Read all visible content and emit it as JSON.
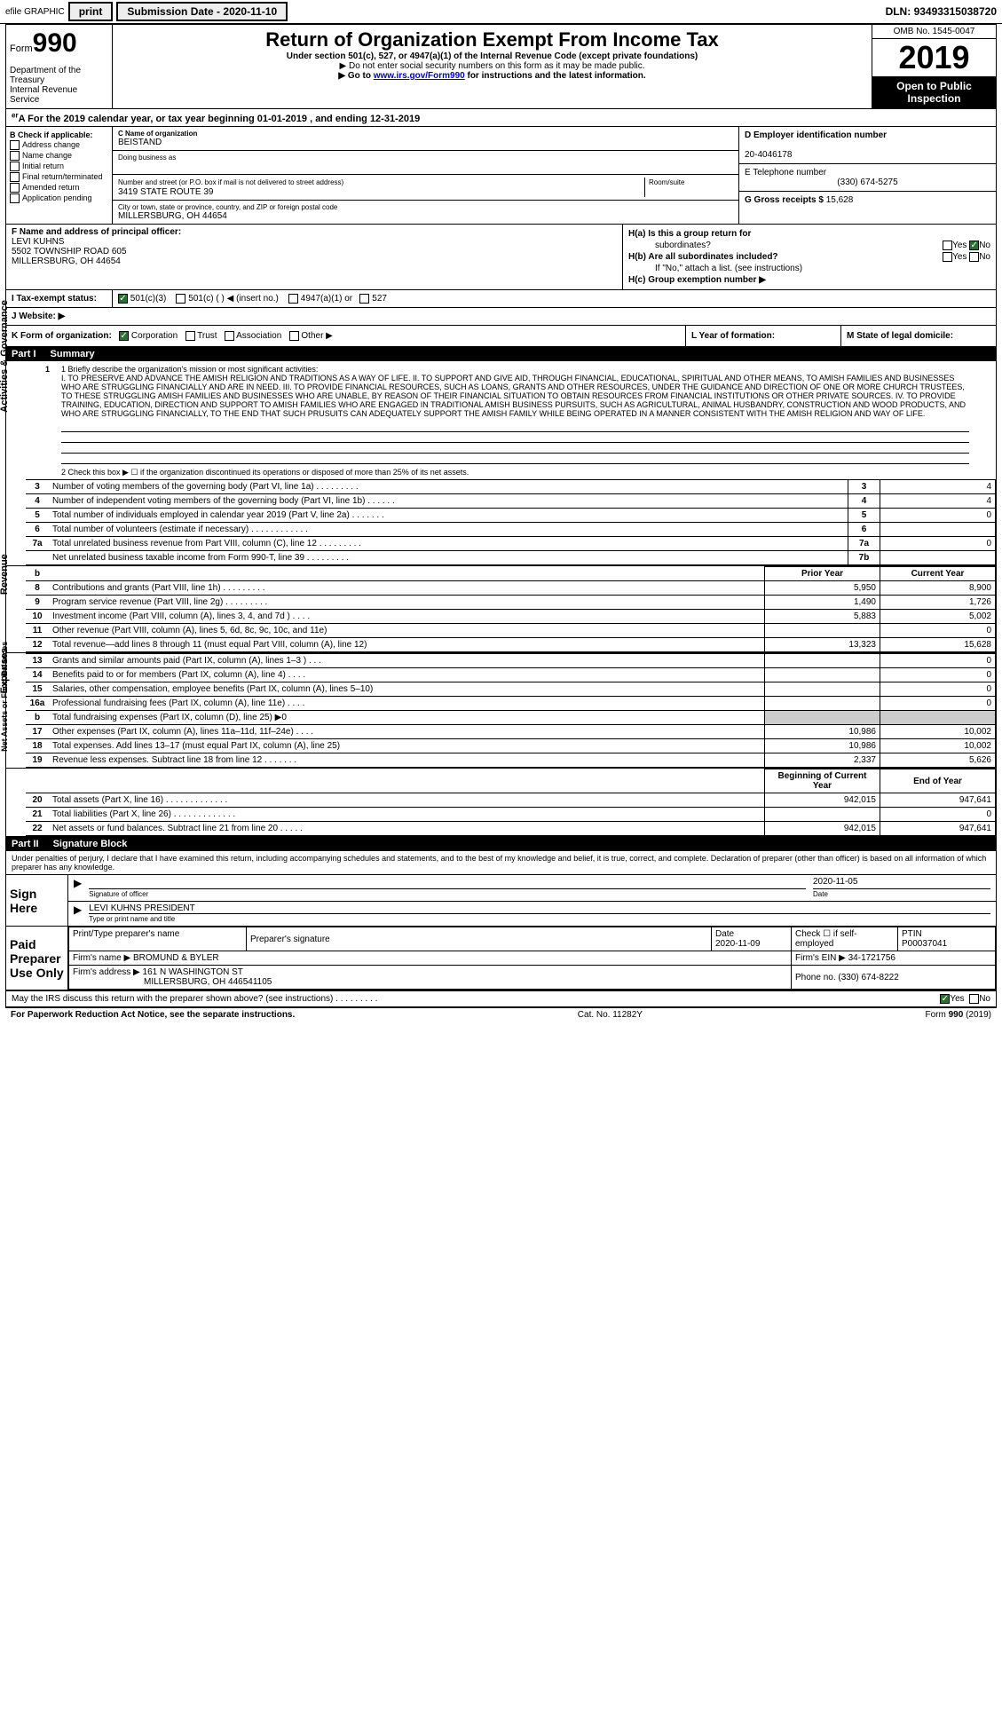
{
  "topbar": {
    "efile": "efile GRAPHIC",
    "print": "print",
    "submission_label": "Submission Date - ",
    "submission_date": "2020-11-10",
    "dln_label": "DLN: ",
    "dln": "93493315038720"
  },
  "header": {
    "form_prefix": "Form",
    "form_no": "990",
    "dept": "Department of the Treasury",
    "irs": "Internal Revenue Service",
    "title": "Return of Organization Exempt From Income Tax",
    "sub1": "Under section 501(c), 527, or 4947(a)(1) of the Internal Revenue Code (except private foundations)",
    "sub2": "▶ Do not enter social security numbers on this form as it may be made public.",
    "sub3_pre": "▶ Go to ",
    "sub3_link": "www.irs.gov/Form990",
    "sub3_post": " for instructions and the latest information.",
    "omb": "OMB No. 1545-0047",
    "year": "2019",
    "otp1": "Open to Public",
    "otp2": "Inspection"
  },
  "taxyear": {
    "text_pre": "A For the 2019 calendar year, or tax year beginning ",
    "begin": "01-01-2019",
    "mid": " , and ending ",
    "end": "12-31-2019"
  },
  "colB": {
    "label": "B Check if applicable:",
    "items": [
      "Address change",
      "Name change",
      "Initial return",
      "Final return/terminated",
      "Amended return",
      "Application pending"
    ]
  },
  "colC": {
    "name_lbl": "C Name of organization",
    "name": "BEISTAND",
    "dba_lbl": "Doing business as",
    "street_lbl": "Number and street (or P.O. box if mail is not delivered to street address)",
    "street": "3419 STATE ROUTE 39",
    "room_lbl": "Room/suite",
    "city_lbl": "City or town, state or province, country, and ZIP or foreign postal code",
    "city": "MILLERSBURG, OH  44654"
  },
  "colDE": {
    "d_lbl": "D Employer identification number",
    "d_val": "20-4046178",
    "e_lbl": "E Telephone number",
    "e_val": "(330) 674-5275",
    "g_lbl": "G Gross receipts $ ",
    "g_val": "15,628"
  },
  "rowF": {
    "f_lbl": "F Name and address of principal officer:",
    "f_name": "LEVI KUHNS",
    "f_addr1": "5502 TOWNSHIP ROAD 605",
    "f_addr2": "MILLERSBURG, OH  44654"
  },
  "rowH": {
    "ha_lbl": "H(a)  Is this a group return for",
    "ha_sub": "subordinates?",
    "hb_lbl": "H(b)  Are all subordinates included?",
    "hb_note": "If \"No,\" attach a list. (see instructions)",
    "hc_lbl": "H(c)  Group exemption number ▶",
    "yes": "Yes",
    "no": "No"
  },
  "rowI": {
    "lbl": "I   Tax-exempt status:",
    "opt1": "501(c)(3)",
    "opt2": "501(c) (  ) ◀ (insert no.)",
    "opt3": "4947(a)(1) or",
    "opt4": "527"
  },
  "rowJ": {
    "lbl": "J   Website: ▶"
  },
  "rowK": {
    "lbl": "K Form of organization:",
    "opts": [
      "Corporation",
      "Trust",
      "Association",
      "Other ▶"
    ],
    "l_lbl": "L Year of formation:",
    "m_lbl": "M State of legal domicile:"
  },
  "partI": {
    "hdr": "Part I",
    "title": "Summary",
    "side1": "Activities & Governance",
    "side2": "Revenue",
    "side3": "Expenses",
    "side4": "Net Assets or Fund Balances",
    "line1_lbl": "1  Briefly describe the organization's mission or most significant activities:",
    "mission": "I. TO PRESERVE AND ADVANCE THE AMISH RELIGION AND TRADITIONS AS A WAY OF LIFE. II. TO SUPPORT AND GIVE AID, THROUGH FINANCIAL, EDUCATIONAL, SPIRITUAL AND OTHER MEANS, TO AMISH FAMILIES AND BUSINESSES WHO ARE STRUGGLING FINANCIALLY AND ARE IN NEED. III. TO PROVIDE FINANCIAL RESOURCES, SUCH AS LOANS, GRANTS AND OTHER RESOURCES, UNDER THE GUIDANCE AND DIRECTION OF ONE OR MORE CHURCH TRUSTEES, TO THESE STRUGGLING AMISH FAMILIES AND BUSINESSES WHO ARE UNABLE, BY REASON OF THEIR FINANCIAL SITUATION TO OBTAIN RESOURCES FROM FINANCIAL INSTITUTIONS OR OTHER PRIVATE SOURCES. IV. TO PROVIDE TRAINING, EDUCATION, DIRECTION AND SUPPORT TO AMISH FAMILIES WHO ARE ENGAGED IN TRADITIONAL AMISH BUSINESS PURSUITS, SUCH AS AGRICULTURAL, ANIMAL HUSBANDRY, CONSTRUCTION AND WOOD PRODUCTS, AND WHO ARE STRUGGLING FINANCIALLY, TO THE END THAT SUCH PRUSUITS CAN ADEQUATELY SUPPORT THE AMISH FAMILY WHILE BEING OPERATED IN A MANNER CONSISTENT WITH THE AMISH RELIGION AND WAY OF LIFE.",
    "line2": "2   Check this box ▶ ☐ if the organization discontinued its operations or disposed of more than 25% of its net assets.",
    "rows_gov": [
      {
        "n": "3",
        "t": "Number of voting members of the governing body (Part VI, line 1a)   .    .    .    .    .    .    .    .    .",
        "k": "3",
        "v": "4"
      },
      {
        "n": "4",
        "t": "Number of independent voting members of the governing body (Part VI, line 1b)   .    .    .    .    .    .",
        "k": "4",
        "v": "4"
      },
      {
        "n": "5",
        "t": "Total number of individuals employed in calendar year 2019 (Part V, line 2a)   .    .    .    .    .    .    .",
        "k": "5",
        "v": "0"
      },
      {
        "n": "6",
        "t": "Total number of volunteers (estimate if necessary)   .    .    .    .    .    .    .    .    .    .    .    .",
        "k": "6",
        "v": ""
      },
      {
        "n": "7a",
        "t": "Total unrelated business revenue from Part VIII, column (C), line 12   .    .    .    .    .    .    .    .    .",
        "k": "7a",
        "v": "0"
      },
      {
        "n": "",
        "t": "Net unrelated business taxable income from Form 990-T, line 39   .    .    .    .    .    .    .    .    .",
        "k": "7b",
        "v": ""
      }
    ],
    "hdr_prior": "Prior Year",
    "hdr_current": "Current Year",
    "rows_rev": [
      {
        "n": "8",
        "t": "Contributions and grants (Part VIII, line 1h)   .    .    .    .    .    .    .    .    .",
        "p": "5,950",
        "c": "8,900"
      },
      {
        "n": "9",
        "t": "Program service revenue (Part VIII, line 2g)   .    .    .    .    .    .    .    .    .",
        "p": "1,490",
        "c": "1,726"
      },
      {
        "n": "10",
        "t": "Investment income (Part VIII, column (A), lines 3, 4, and 7d )   .    .    .    .",
        "p": "5,883",
        "c": "5,002"
      },
      {
        "n": "11",
        "t": "Other revenue (Part VIII, column (A), lines 5, 6d, 8c, 9c, 10c, and 11e)",
        "p": "",
        "c": "0"
      },
      {
        "n": "12",
        "t": "Total revenue—add lines 8 through 11 (must equal Part VIII, column (A), line 12)",
        "p": "13,323",
        "c": "15,628"
      }
    ],
    "rows_exp": [
      {
        "n": "13",
        "t": "Grants and similar amounts paid (Part IX, column (A), lines 1–3 )   .    .    .",
        "p": "",
        "c": "0"
      },
      {
        "n": "14",
        "t": "Benefits paid to or for members (Part IX, column (A), line 4)   .    .    .    .",
        "p": "",
        "c": "0"
      },
      {
        "n": "15",
        "t": "Salaries, other compensation, employee benefits (Part IX, column (A), lines 5–10)",
        "p": "",
        "c": "0"
      },
      {
        "n": "16a",
        "t": "Professional fundraising fees (Part IX, column (A), line 11e)   .    .    .    .",
        "p": "",
        "c": "0"
      },
      {
        "n": "b",
        "t": "Total fundraising expenses (Part IX, column (D), line 25) ▶0",
        "p": "shade",
        "c": "shade"
      },
      {
        "n": "17",
        "t": "Other expenses (Part IX, column (A), lines 11a–11d, 11f–24e)   .    .    .    .",
        "p": "10,986",
        "c": "10,002"
      },
      {
        "n": "18",
        "t": "Total expenses. Add lines 13–17 (must equal Part IX, column (A), line 25)",
        "p": "10,986",
        "c": "10,002"
      },
      {
        "n": "19",
        "t": "Revenue less expenses. Subtract line 18 from line 12   .    .    .    .    .    .    .",
        "p": "2,337",
        "c": "5,626"
      }
    ],
    "hdr_boy": "Beginning of Current Year",
    "hdr_eoy": "End of Year",
    "rows_net": [
      {
        "n": "20",
        "t": "Total assets (Part X, line 16)   .    .    .    .    .    .    .    .    .    .    .    .    .",
        "p": "942,015",
        "c": "947,641"
      },
      {
        "n": "21",
        "t": "Total liabilities (Part X, line 26)   .    .    .    .    .    .    .    .    .    .    .    .    .",
        "p": "",
        "c": "0"
      },
      {
        "n": "22",
        "t": "Net assets or fund balances. Subtract line 21 from line 20   .    .    .    .    .",
        "p": "942,015",
        "c": "947,641"
      }
    ]
  },
  "partII": {
    "hdr": "Part II",
    "title": "Signature Block",
    "penalties": "Under penalties of perjury, I declare that I have examined this return, including accompanying schedules and statements, and to the best of my knowledge and belief, it is true, correct, and complete. Declaration of preparer (other than officer) is based on all information of which preparer has any knowledge.",
    "sign_here": "Sign Here",
    "sig_officer": "Signature of officer",
    "date_lbl": "Date",
    "date_val": "2020-11-05",
    "officer_name": "LEVI KUHNS  PRESIDENT",
    "type_name": "Type or print name and title",
    "paid": "Paid Preparer Use Only",
    "prep_name_lbl": "Print/Type preparer's name",
    "prep_sig_lbl": "Preparer's signature",
    "prep_date_lbl": "Date",
    "prep_date": "2020-11-09",
    "check_self": "Check ☐ if self-employed",
    "ptin_lbl": "PTIN",
    "ptin": "P00037041",
    "firm_name_lbl": "Firm's name    ▶ ",
    "firm_name": "BROMUND & BYLER",
    "firm_ein_lbl": "Firm's EIN ▶ ",
    "firm_ein": "34-1721756",
    "firm_addr_lbl": "Firm's address ▶ ",
    "firm_addr1": "161 N WASHINGTON ST",
    "firm_addr2": "MILLERSBURG, OH  446541105",
    "phone_lbl": "Phone no. ",
    "phone": "(330) 674-8222"
  },
  "may_discuss": {
    "text": "May the IRS discuss this return with the preparer shown above? (see instructions)   .    .    .    .    .    .    .    .    .",
    "yes": "Yes",
    "no": "No"
  },
  "footer": {
    "left": "For Paperwork Reduction Act Notice, see the separate instructions.",
    "mid": "Cat. No. 11282Y",
    "right": "Form 990 (2019)"
  }
}
